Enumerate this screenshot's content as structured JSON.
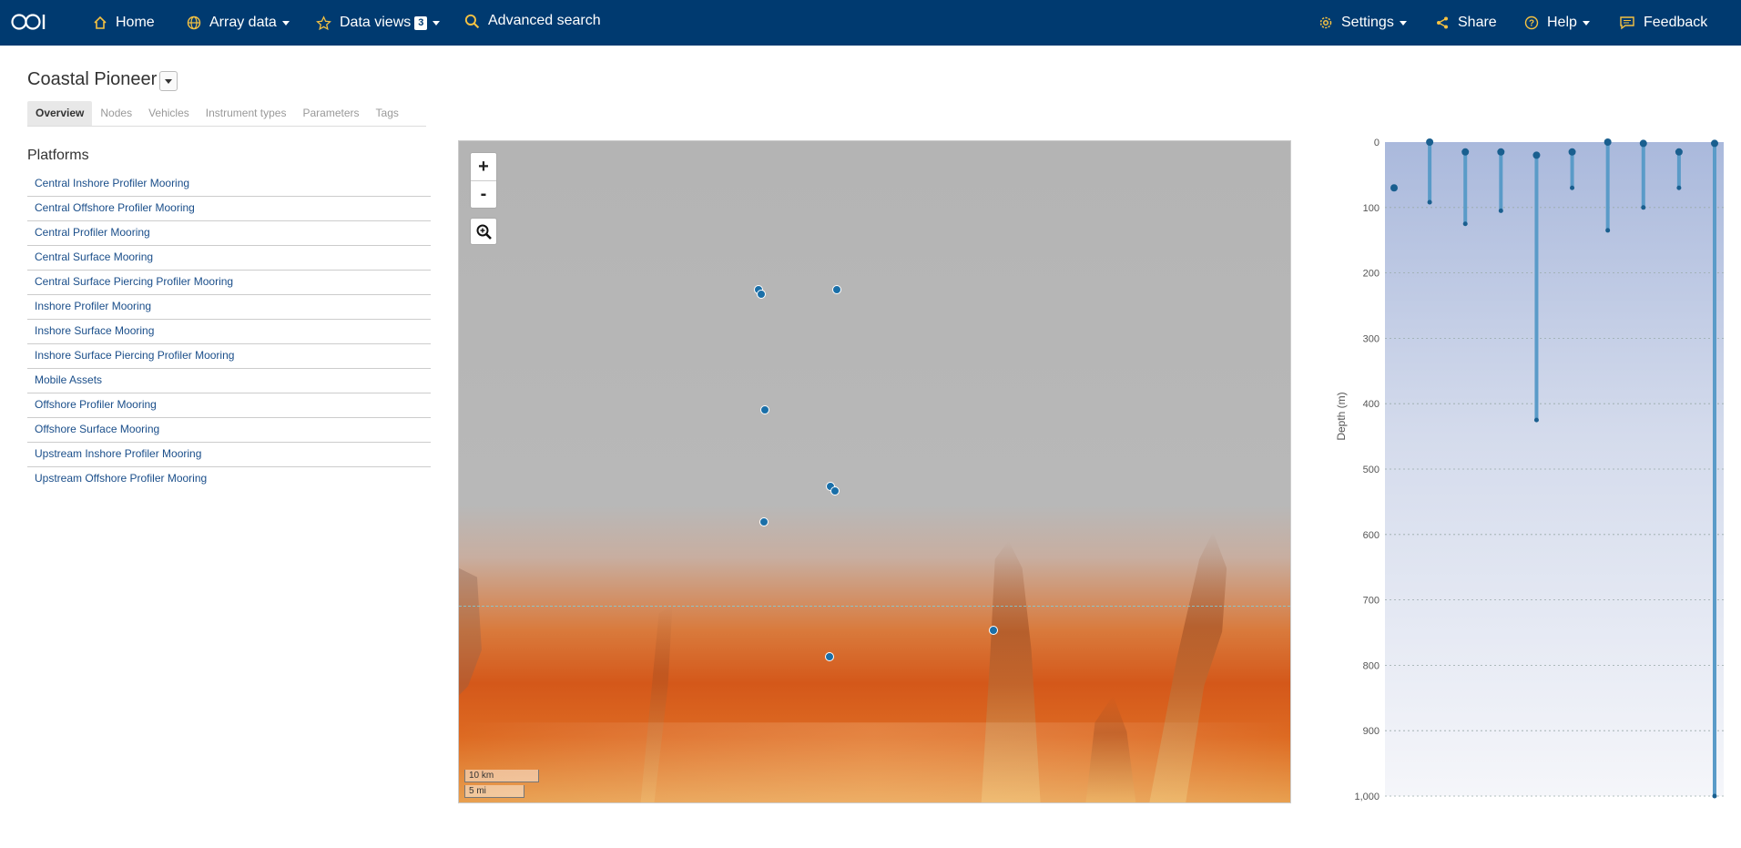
{
  "nav": {
    "logo": "OOI",
    "home": "Home",
    "array_data": "Array data",
    "data_views": "Data views",
    "data_views_count": "3",
    "advanced_search": "Advanced search",
    "settings": "Settings",
    "share": "Share",
    "help": "Help",
    "feedback": "Feedback",
    "accent_color": "#f5c242",
    "bar_color": "#003a70"
  },
  "page": {
    "title": "Coastal Pioneer",
    "tabs": [
      "Overview",
      "Nodes",
      "Vehicles",
      "Instrument types",
      "Parameters",
      "Tags"
    ],
    "active_tab": "Overview"
  },
  "platforms": {
    "heading": "Platforms",
    "items": [
      "Central Inshore Profiler Mooring",
      "Central Offshore Profiler Mooring",
      "Central Profiler Mooring",
      "Central Surface Mooring",
      "Central Surface Piercing Profiler Mooring",
      "Inshore Profiler Mooring",
      "Inshore Surface Mooring",
      "Inshore Surface Piercing Profiler Mooring",
      "Mobile Assets",
      "Offshore Profiler Mooring",
      "Offshore Surface Mooring",
      "Upstream Inshore Profiler Mooring",
      "Upstream Offshore Profiler Mooring"
    ]
  },
  "map": {
    "zoom_in": "+",
    "zoom_out": "-",
    "scale_km": "10 km",
    "scale_mi": "5 mi",
    "marker_color": "#1a6fa8"
  },
  "chart_data": {
    "type": "bar",
    "ylabel": "Depth (m)",
    "ylim": [
      0,
      1000
    ],
    "y_inverted": true,
    "yticks": [
      "0",
      "100",
      "200",
      "300",
      "400",
      "500",
      "600",
      "700",
      "800",
      "900",
      "1,000"
    ],
    "ytick_values": [
      0,
      100,
      200,
      300,
      400,
      500,
      600,
      700,
      800,
      900,
      1000
    ],
    "series": [
      {
        "top": 70,
        "bottom": 70
      },
      {
        "top": 0,
        "bottom": 92
      },
      {
        "top": 15,
        "bottom": 125
      },
      {
        "top": 15,
        "bottom": 105
      },
      {
        "top": 20,
        "bottom": 425
      },
      {
        "top": 15,
        "bottom": 70
      },
      {
        "top": 0,
        "bottom": 135
      },
      {
        "top": 2,
        "bottom": 100
      },
      {
        "top": 15,
        "bottom": 70
      },
      {
        "top": 2,
        "bottom": 1000
      }
    ],
    "grid": true,
    "bar_color": "#5a9bc8"
  }
}
